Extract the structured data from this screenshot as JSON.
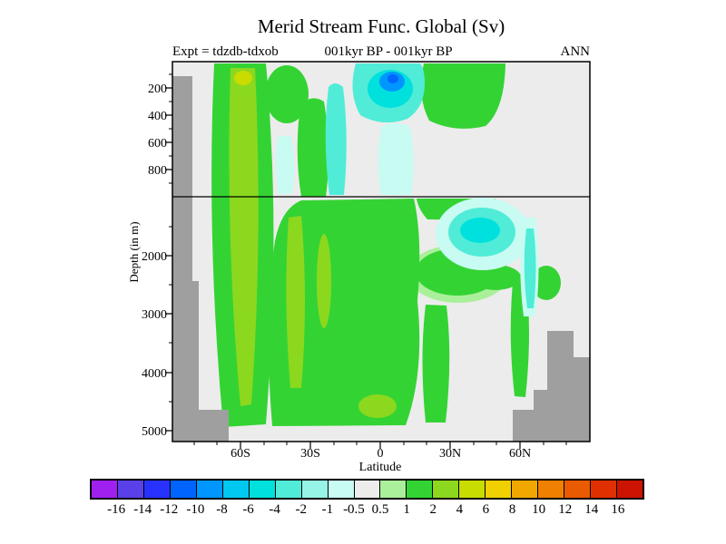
{
  "chart_data": {
    "type": "contour",
    "title": "Merid Stream Func. Global (Sv)",
    "subtitle_left": "Expt = tdzdb-tdxob",
    "subtitle_center": "001kyr BP - 001kyr BP",
    "subtitle_right": "ANN",
    "xlabel": "Latitude",
    "ylabel": "Depth (in m)",
    "x_ticks": [
      "60S",
      "30S",
      "0",
      "30N",
      "60N"
    ],
    "y_ticks": [
      "200",
      "400",
      "600",
      "800",
      "2000",
      "3000",
      "4000",
      "5000"
    ],
    "x_range_deg": [
      -89,
      90
    ],
    "y_range_m": [
      0,
      5200
    ],
    "y_axis_break_depth_m": 1000,
    "grid": false,
    "units": "Sv",
    "legend_position": "bottom-colorbar",
    "colorbar": {
      "tick_labels": [
        "-16",
        "-14",
        "-12",
        "-10",
        "-8",
        "-6",
        "-4",
        "-2",
        "-1",
        "-0.5",
        "0.5",
        "1",
        "2",
        "4",
        "6",
        "8",
        "10",
        "12",
        "14",
        "16"
      ],
      "colors": [
        "#a020f0",
        "#5a40e8",
        "#2832ff",
        "#0064ff",
        "#0096ff",
        "#00c8f0",
        "#00e0dc",
        "#50ecd8",
        "#96f4e6",
        "#c8fbf2",
        "#ececec",
        "#aaf09a",
        "#34d334",
        "#8cd81e",
        "#c8dc00",
        "#f0d000",
        "#f0a800",
        "#f08000",
        "#ea5a00",
        "#e03000",
        "#cc1400"
      ]
    },
    "colors": {
      "plot_background": "#ececec",
      "topography": "#9f9f9f",
      "frame": "#000000"
    },
    "features": [
      {
        "lat": "62S-50S",
        "depth_m": "0-5000",
        "value_sv": "+1 to +4",
        "note": "tall positive band, 2-4 Sv core"
      },
      {
        "lat": "30S-0",
        "depth_m": "1000-5000",
        "value_sv": "+0.5 to +2",
        "note": "broad positive region with 2-4 Sv slivers"
      },
      {
        "lat": "40S-25S",
        "depth_m": "100-1000",
        "value_sv": "-2 to -0.5",
        "note": "narrow negative streaks"
      },
      {
        "lat": "5S-15N",
        "depth_m": "0-600",
        "value_sv": "-8 to -1",
        "note": "negative cell, blue core near 150 m"
      },
      {
        "lat": "15N-45N",
        "depth_m": "0-800",
        "value_sv": "+0.5 to +2",
        "note": "positive surface patch"
      },
      {
        "lat": "25N-50N",
        "depth_m": "1000-2500",
        "value_sv": "-4 to -0.5",
        "note": "negative mid-depth blob"
      },
      {
        "lat": "55N-62N",
        "depth_m": "1000-3000",
        "value_sv": "-2 to -0.5",
        "note": "narrow negative sliver"
      },
      {
        "lat": "45N-70N",
        "depth_m": "3500-5200",
        "value_sv": null,
        "note": "topography (masked gray)"
      },
      {
        "lat": "80S-75S",
        "depth_m": "100-5200",
        "value_sv": null,
        "note": "topography (masked gray)"
      }
    ]
  }
}
